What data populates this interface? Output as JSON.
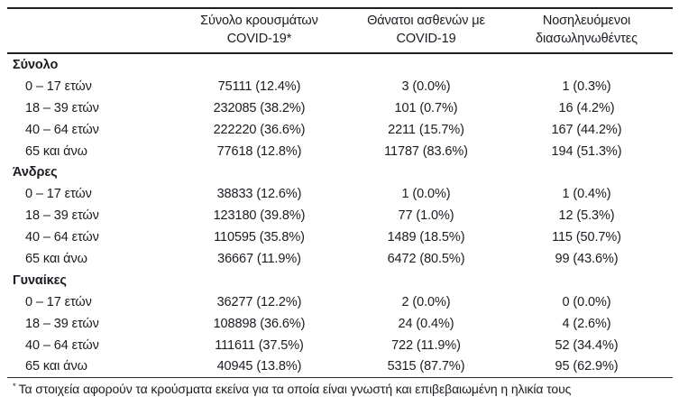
{
  "table": {
    "columns": {
      "group": "",
      "cases": {
        "line1": "Σύνολο κρουσμάτων",
        "line2": "COVID-19*"
      },
      "deaths": {
        "line1": "Θάνατοι ασθενών με",
        "line2": "COVID-19"
      },
      "intubated": {
        "line1": "Νοσηλευόμενοι",
        "line2": "διασωληνωθέντες"
      }
    },
    "sections": [
      {
        "label": "Σύνολο",
        "rows": [
          {
            "label": "0 – 17 ετών",
            "cases": "75111 (12.4%)",
            "deaths": "3 (0.0%)",
            "intubated": "1 (0.3%)"
          },
          {
            "label": "18 – 39 ετών",
            "cases": "232085 (38.2%)",
            "deaths": "101 (0.7%)",
            "intubated": "16 (4.2%)"
          },
          {
            "label": "40 – 64 ετών",
            "cases": "222220 (36.6%)",
            "deaths": "2211 (15.7%)",
            "intubated": "167 (44.2%)"
          },
          {
            "label": "65 και άνω",
            "cases": "77618 (12.8%)",
            "deaths": "11787 (83.6%)",
            "intubated": "194 (51.3%)"
          }
        ]
      },
      {
        "label": "Άνδρες",
        "rows": [
          {
            "label": "0 – 17 ετών",
            "cases": "38833 (12.6%)",
            "deaths": "1 (0.0%)",
            "intubated": "1 (0.4%)"
          },
          {
            "label": "18 – 39 ετών",
            "cases": "123180 (39.8%)",
            "deaths": "77 (1.0%)",
            "intubated": "12 (5.3%)"
          },
          {
            "label": "40 – 64 ετών",
            "cases": "110595 (35.8%)",
            "deaths": "1489 (18.5%)",
            "intubated": "115 (50.7%)"
          },
          {
            "label": "65 και άνω",
            "cases": "36667 (11.9%)",
            "deaths": "6472 (80.5%)",
            "intubated": "99 (43.6%)"
          }
        ]
      },
      {
        "label": "Γυναίκες",
        "rows": [
          {
            "label": "0 – 17 ετών",
            "cases": "36277 (12.2%)",
            "deaths": "2 (0.0%)",
            "intubated": "0 (0.0%)"
          },
          {
            "label": "18 – 39 ετών",
            "cases": "108898 (36.6%)",
            "deaths": "24 (0.4%)",
            "intubated": "4 (2.6%)"
          },
          {
            "label": "40 – 64 ετών",
            "cases": "111611 (37.5%)",
            "deaths": "722 (11.9%)",
            "intubated": "52 (34.4%)"
          },
          {
            "label": "65 και άνω",
            "cases": "40945 (13.8%)",
            "deaths": "5315 (87.7%)",
            "intubated": "95 (62.9%)"
          }
        ]
      }
    ],
    "footnote": {
      "marker": "*",
      "text": "Τα στοιχεία αφορούν τα κρούσματα εκείνα για τα οποία είναι γνωστή και επιβεβαιωμένη η ηλικία τους"
    },
    "colors": {
      "text": "#1b1b22",
      "rule": "#1f1f1f",
      "background": "#ffffff"
    }
  }
}
